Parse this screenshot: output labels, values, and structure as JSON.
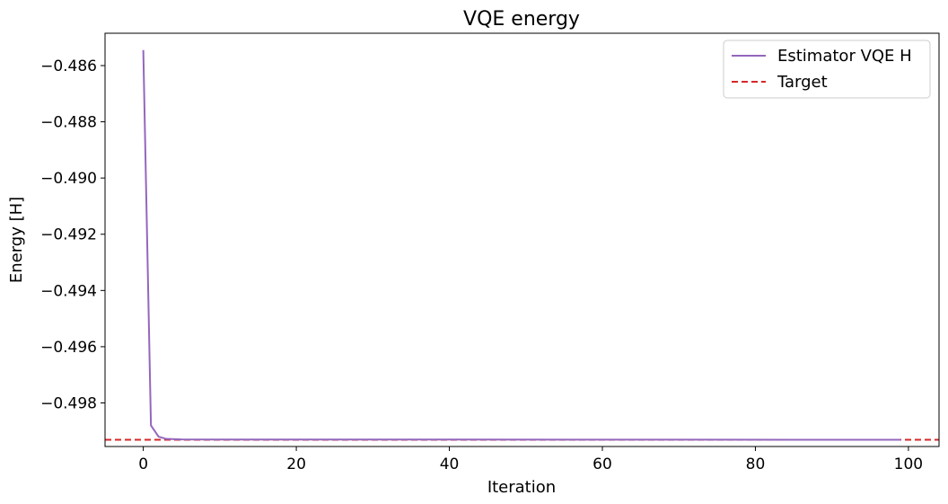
{
  "chart_data": {
    "type": "line",
    "title": "VQE energy",
    "xlabel": "Iteration",
    "ylabel": "Energy [H]",
    "xlim": [
      -5,
      104
    ],
    "ylim": [
      -0.49955,
      -0.48485
    ],
    "xticks": [
      0,
      20,
      40,
      60,
      80,
      100
    ],
    "yticks": [
      -0.486,
      -0.488,
      -0.49,
      -0.492,
      -0.494,
      -0.496,
      -0.498
    ],
    "xtick_labels": [
      "0",
      "20",
      "40",
      "60",
      "80",
      "100"
    ],
    "ytick_labels": [
      "−0.486",
      "−0.488",
      "−0.490",
      "−0.492",
      "−0.494",
      "−0.496",
      "−0.498"
    ],
    "grid": false,
    "legend_position": "top-right",
    "series": [
      {
        "name": "Estimator VQE H",
        "color": "#9467bd",
        "style": "solid",
        "points": [
          [
            0,
            -0.48545
          ],
          [
            1,
            -0.4988
          ],
          [
            2,
            -0.4992
          ],
          [
            3,
            -0.49928
          ],
          [
            5,
            -0.4993
          ],
          [
            99,
            -0.49931
          ]
        ]
      }
    ],
    "reference_lines": [
      {
        "name": "Target",
        "color": "#d62728",
        "style": "dashed",
        "y": -0.49931
      }
    ]
  }
}
